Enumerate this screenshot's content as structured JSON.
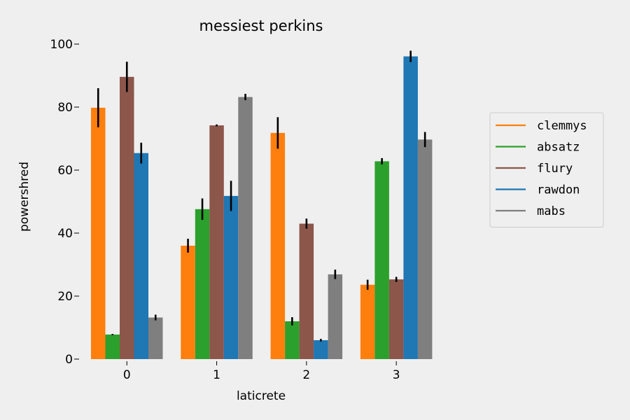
{
  "chart_data": {
    "type": "bar",
    "title": "messiest perkins",
    "xlabel": "laticrete",
    "ylabel": "powershred",
    "categories": [
      "0",
      "1",
      "2",
      "3"
    ],
    "ylim": [
      0,
      100
    ],
    "yticks": [
      0,
      20,
      40,
      60,
      80,
      100
    ],
    "grid": false,
    "legend_position": "right",
    "series": [
      {
        "name": "clemmys",
        "color": "#ff7f0e",
        "values": [
          79.8,
          36.0,
          71.8,
          23.6
        ],
        "errors": [
          6.2,
          2.2,
          5.0,
          1.6
        ]
      },
      {
        "name": "absatz",
        "color": "#2ca02c",
        "values": [
          7.8,
          47.6,
          12.0,
          62.8
        ],
        "errors": [
          0.2,
          3.4,
          1.3,
          1.0
        ]
      },
      {
        "name": "flury",
        "color": "#8c564b",
        "values": [
          89.6,
          74.2,
          43.0,
          25.3
        ],
        "errors": [
          4.8,
          0.3,
          1.6,
          0.8
        ]
      },
      {
        "name": "rawdon",
        "color": "#1f77b4",
        "values": [
          65.4,
          51.8,
          6.0,
          96.1
        ],
        "errors": [
          3.3,
          4.8,
          0.4,
          1.8
        ]
      },
      {
        "name": "mabs",
        "color": "#7f7f7f",
        "values": [
          13.2,
          83.2,
          26.9,
          69.7
        ],
        "errors": [
          0.9,
          1.0,
          1.5,
          2.4
        ]
      }
    ]
  }
}
